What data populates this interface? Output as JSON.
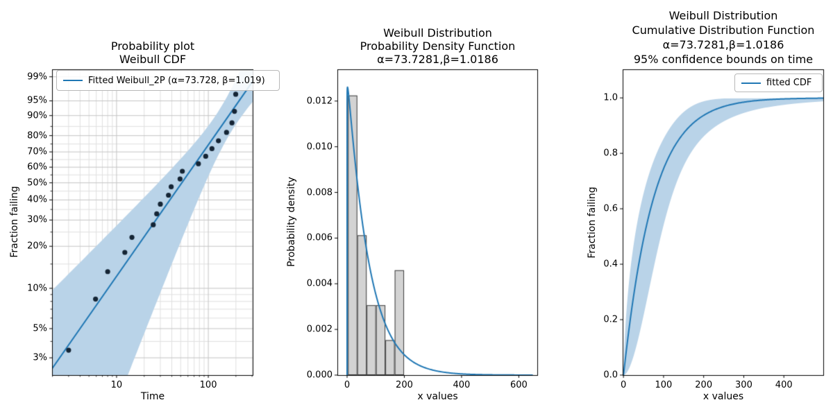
{
  "figure": {
    "background": "#ffffff"
  },
  "colors": {
    "fit_line": "#1f77b4",
    "confidence_band": "#b9d3e8",
    "scatter": "#152535",
    "hist_fill": "#d3d3d3",
    "hist_edge": "#3c3c3c",
    "grid_major": "#c4c4c4",
    "grid_minor": "#e0e0e0",
    "axis": "#000000",
    "text": "#000000"
  },
  "chart_data": [
    {
      "id": "probability_plot",
      "type": "scatter",
      "title": "Probability plot\nWeibull CDF",
      "xlabel": "Time",
      "ylabel": "Fraction failing",
      "xscale": "log",
      "yscale": "weibull_probability",
      "xlim": [
        1.98,
        310
      ],
      "ylim_z": [
        -3.8,
        1.66
      ],
      "xticks": [
        10,
        100
      ],
      "xticks_minor": [
        2,
        3,
        4,
        5,
        6,
        7,
        8,
        9,
        20,
        30,
        40,
        50,
        60,
        70,
        80,
        90,
        200,
        300
      ],
      "ytick_percents": [
        99,
        95,
        90,
        80,
        70,
        60,
        50,
        40,
        30,
        20,
        10,
        5,
        3
      ],
      "ytick_minor_percents": [
        4,
        6,
        7,
        8,
        9,
        15,
        25,
        35,
        45,
        55,
        65,
        75,
        85
      ],
      "grid": true,
      "legend": [
        {
          "label": "Fitted Weibull_2P (α=73.728, β=1.019)"
        }
      ],
      "weibull_alpha": 73.7281,
      "weibull_beta": 1.0186,
      "failure_times": [
        3,
        5.9,
        8,
        12.3,
        14.7,
        25.1,
        27.4,
        30,
        36.8,
        39.4,
        49.2,
        52.1,
        78,
        93.7,
        109.6,
        129,
        158,
        181,
        193,
        199
      ],
      "plotting_position": "median rank (i-0.3)/(n+0.4)",
      "confidence_band": {
        "level": 0.95,
        "on": "time",
        "width_model_ln_t": {
          "a": 0.109,
          "b": 0.19,
          "c": 0.761
        }
      }
    },
    {
      "id": "pdf_plot",
      "type": "bar",
      "title": "Weibull Distribution\nProbability Density Function\nα=73.7281,β=1.0186",
      "xlabel": "x values",
      "ylabel": "Probability density",
      "xlim": [
        -34,
        667
      ],
      "ylim": [
        0,
        0.01339
      ],
      "xticks": [
        0,
        200,
        400,
        600
      ],
      "ytick_labels": [
        "0.000",
        "0.002",
        "0.004",
        "0.006",
        "0.008",
        "0.010",
        "0.012"
      ],
      "ytick_values": [
        0,
        0.002,
        0.004,
        0.006,
        0.008,
        0.01,
        0.012
      ],
      "grid": false,
      "hist_bin_edges": [
        3,
        35.667,
        68.333,
        101,
        133.667,
        166.333,
        199
      ],
      "hist_counts": [
        8,
        4,
        2,
        2,
        1,
        3
      ],
      "hist_densities": [
        0.01224,
        0.00612,
        0.00306,
        0.00306,
        0.00153,
        0.00459
      ],
      "sample_size": 20,
      "curve": "weibull_pdf",
      "curve_range": [
        0,
        650
      ],
      "curve_peak": 0.0126,
      "weibull_alpha": 73.7281,
      "weibull_beta": 1.0186
    },
    {
      "id": "cdf_plot",
      "type": "line",
      "title": "Weibull Distribution\nCumulative Distribution Function\nα=73.7281,β=1.0186\n95% confidence bounds on time",
      "xlabel": "x values",
      "ylabel": "Fraction failing",
      "xlim": [
        -2,
        500
      ],
      "ylim": [
        0,
        1.103
      ],
      "xticks": [
        0,
        100,
        200,
        300,
        400
      ],
      "ytick_labels": [
        "0.0",
        "0.2",
        "0.4",
        "0.6",
        "0.8",
        "1.0"
      ],
      "ytick_values": [
        0,
        0.2,
        0.4,
        0.6,
        0.8,
        1.0
      ],
      "grid": false,
      "legend": [
        {
          "label": "fitted CDF"
        }
      ],
      "curve": "weibull_cdf",
      "curve_range": [
        0,
        500
      ],
      "weibull_alpha": 73.7281,
      "weibull_beta": 1.0186,
      "confidence_band": {
        "level": 0.95,
        "on": "time",
        "width_model_ln_t": {
          "a": 0.109,
          "b": 0.19,
          "c": 0.761
        }
      }
    }
  ]
}
